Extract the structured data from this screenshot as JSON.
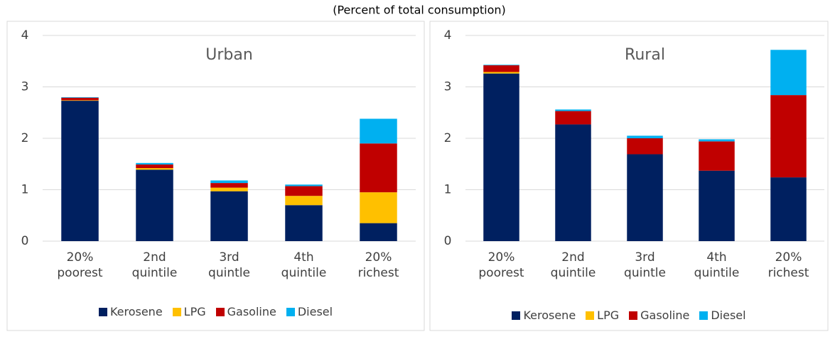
{
  "subtitle": "(Percent of total consumption)",
  "chart_data": [
    {
      "type": "stacked_bar",
      "title": "Urban",
      "categories": [
        "20% poorest",
        "2nd quintile",
        "3rd quintle",
        "4th quintile",
        "20% richest"
      ],
      "series": [
        {
          "name": "Kerosene",
          "color": "#002060",
          "values": [
            2.73,
            1.39,
            0.97,
            0.7,
            0.35
          ]
        },
        {
          "name": "LPG",
          "color": "#ffc000",
          "values": [
            0.01,
            0.03,
            0.07,
            0.18,
            0.6
          ]
        },
        {
          "name": "Gasoline",
          "color": "#c00000",
          "values": [
            0.05,
            0.07,
            0.09,
            0.19,
            0.95
          ]
        },
        {
          "name": "Diesel",
          "color": "#00b0f0",
          "values": [
            0.01,
            0.03,
            0.05,
            0.03,
            0.48
          ]
        }
      ],
      "ylim": [
        0,
        4
      ],
      "yticks": [
        0,
        1,
        2,
        3,
        4
      ],
      "grid": true,
      "legend": "bottom"
    },
    {
      "type": "stacked_bar",
      "title": "Rural",
      "categories": [
        "20% poorest",
        "2nd quintile",
        "3rd quintle",
        "4th quintile",
        "20% richest"
      ],
      "series": [
        {
          "name": "Kerosene",
          "color": "#002060",
          "values": [
            3.26,
            2.27,
            1.69,
            1.37,
            1.24
          ]
        },
        {
          "name": "LPG",
          "color": "#ffc000",
          "values": [
            0.03,
            0,
            0,
            0,
            0
          ]
        },
        {
          "name": "Gasoline",
          "color": "#c00000",
          "values": [
            0.13,
            0.26,
            0.31,
            0.57,
            1.6
          ]
        },
        {
          "name": "Diesel",
          "color": "#00b0f0",
          "values": [
            0.01,
            0.03,
            0.05,
            0.04,
            0.88
          ]
        }
      ],
      "ylim": [
        0,
        4
      ],
      "yticks": [
        0,
        1,
        2,
        3,
        4
      ],
      "grid": true,
      "legend": "bottom"
    }
  ]
}
